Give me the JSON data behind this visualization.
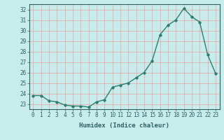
{
  "x": [
    0,
    1,
    2,
    3,
    4,
    5,
    6,
    7,
    8,
    9,
    10,
    11,
    12,
    13,
    14,
    15,
    16,
    17,
    18,
    19,
    20,
    21,
    22,
    23
  ],
  "y": [
    23.8,
    23.8,
    23.3,
    23.2,
    22.9,
    22.8,
    22.8,
    22.7,
    23.2,
    23.4,
    24.6,
    24.8,
    25.0,
    25.5,
    26.0,
    27.1,
    29.6,
    30.5,
    31.0,
    32.1,
    31.3,
    30.8,
    27.7,
    25.9
  ],
  "xlabel": "Humidex (Indice chaleur)",
  "ylim": [
    22.5,
    32.5
  ],
  "xlim": [
    -0.5,
    23.5
  ],
  "yticks": [
    23,
    24,
    25,
    26,
    27,
    28,
    29,
    30,
    31,
    32
  ],
  "xticks": [
    0,
    1,
    2,
    3,
    4,
    5,
    6,
    7,
    8,
    9,
    10,
    11,
    12,
    13,
    14,
    15,
    16,
    17,
    18,
    19,
    20,
    21,
    22,
    23
  ],
  "line_color": "#2e7d6e",
  "marker": "D",
  "marker_size": 1.8,
  "bg_color": "#c8ecec",
  "grid_color": "#e8a0a0",
  "axis_color": "#2e6060",
  "xlabel_fontsize": 6.5,
  "tick_fontsize": 5.5,
  "line_width": 1.0
}
